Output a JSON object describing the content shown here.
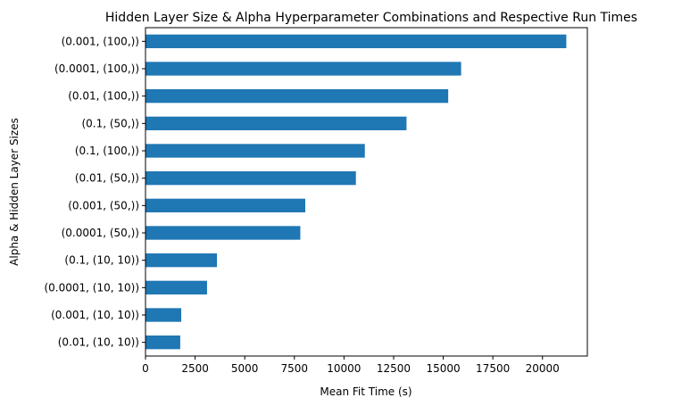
{
  "chart_data": {
    "type": "bar",
    "orientation": "horizontal",
    "title": "Hidden Layer Size & Alpha Hyperparameter Combinations and Respective Run Times",
    "xlabel": "Mean Fit Time (s)",
    "ylabel": "Alpha & Hidden Layer Sizes",
    "categories": [
      "(0.001, (100,))",
      "(0.0001, (100,))",
      "(0.01, (100,))",
      "(0.1, (50,))",
      "(0.1, (100,))",
      "(0.01, (50,))",
      "(0.001, (50,))",
      "(0.0001, (50,))",
      "(0.1, (10, 10))",
      "(0.0001, (10, 10))",
      "(0.001, (10, 10))",
      "(0.01, (10, 10))"
    ],
    "values": [
      21200,
      15900,
      15250,
      13150,
      11050,
      10600,
      8050,
      7800,
      3600,
      3100,
      1800,
      1750
    ],
    "xticks": [
      0,
      2500,
      5000,
      7500,
      10000,
      12500,
      15000,
      17500,
      20000
    ],
    "xtick_labels": [
      "0",
      "2500",
      "5000",
      "7500",
      "10000",
      "12500",
      "15000",
      "17500",
      "20000"
    ],
    "xlim": [
      0,
      22260
    ],
    "bar_color": "#1f77b4",
    "grid": false,
    "legend": "none"
  }
}
